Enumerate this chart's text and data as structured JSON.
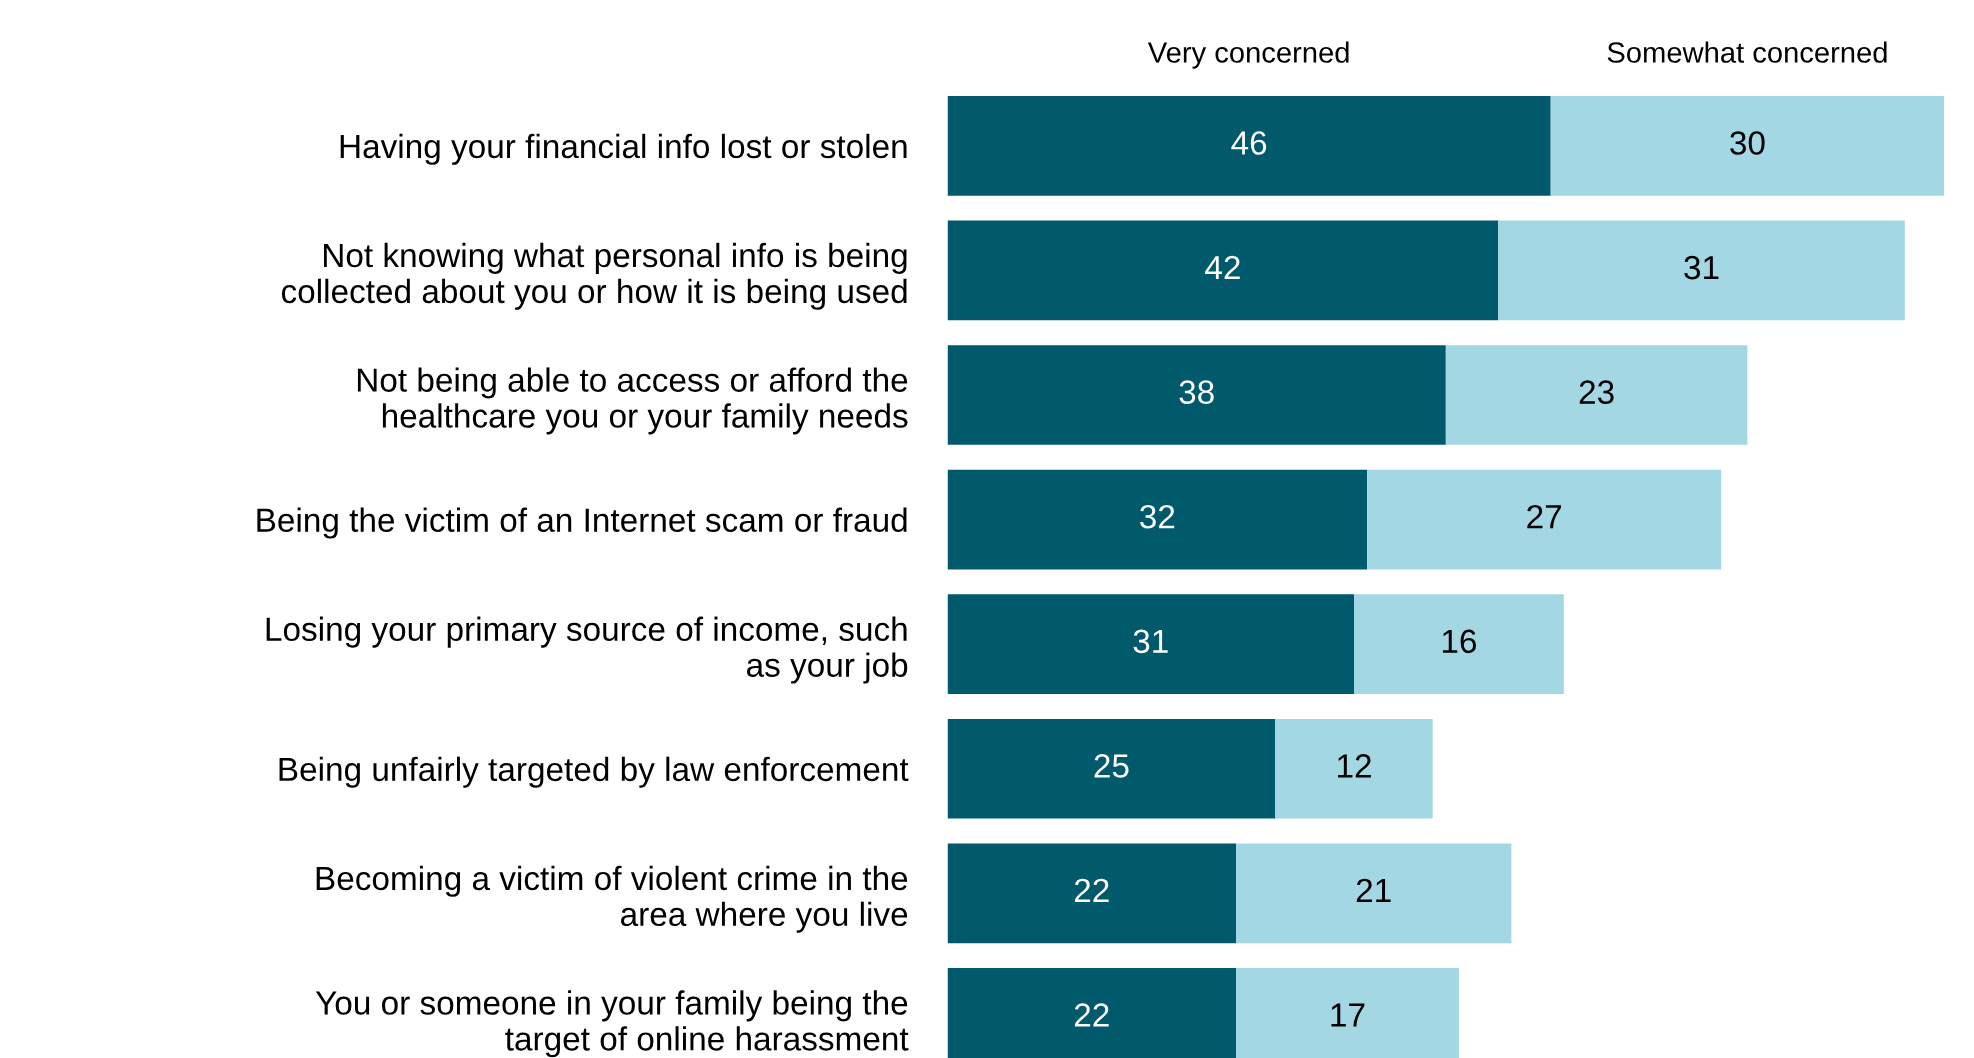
{
  "chart_data": {
    "type": "bar",
    "orientation": "horizontal",
    "stacked": true,
    "data_labels": true,
    "legend": false,
    "grid": false,
    "tick_labels": "y",
    "categories": [
      "Having your financial info lost or stolen",
      "Not knowing what personal info is being\ncollected about you or how it is being used",
      "Not being able to access or afford the\nhealthcare you or your family needs",
      "Being the victim of an Internet scam or fraud",
      "Losing your primary source of income, such\nas your job",
      "Being unfairly targeted by law enforcement",
      "Becoming a victim of violent crime in the\narea where you live",
      "You or someone in your family being the\ntarget of online harassment"
    ],
    "series": [
      {
        "name": "Very concerned",
        "color": "#005a6b",
        "values": [
          46,
          42,
          38,
          32,
          31,
          25,
          22,
          22
        ]
      },
      {
        "name": "Somewhat concerned",
        "color": "#a3d7e4",
        "values": [
          30,
          31,
          23,
          27,
          16,
          12,
          21,
          17
        ]
      }
    ]
  }
}
